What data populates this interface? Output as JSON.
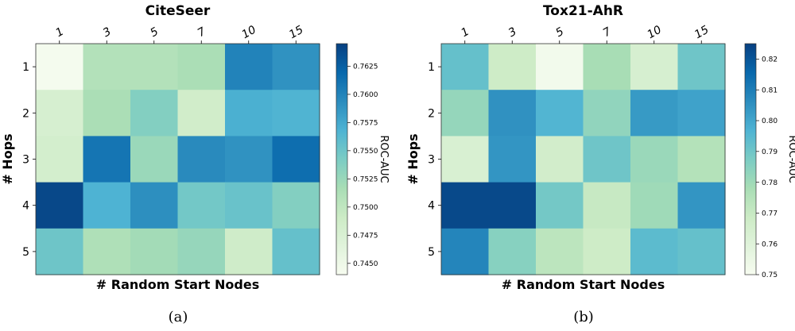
{
  "chart_data": [
    {
      "type": "heatmap",
      "panel_label": "(a)",
      "title": "CiteSeer",
      "xlabel": "# Random Start Nodes",
      "ylabel": "# Hops",
      "x_categories": [
        "1",
        "3",
        "5",
        "7",
        "10",
        "15"
      ],
      "y_categories": [
        "1",
        "2",
        "3",
        "4",
        "5"
      ],
      "values": [
        [
          0.7443,
          0.7509,
          0.7509,
          0.7515,
          0.76,
          0.759
        ],
        [
          0.7478,
          0.7515,
          0.7538,
          0.7485,
          0.757,
          0.7567
        ],
        [
          0.7482,
          0.761,
          0.7525,
          0.7595,
          0.759,
          0.7615
        ],
        [
          0.764,
          0.7568,
          0.7592,
          0.7547,
          0.7553,
          0.7538
        ],
        [
          0.755,
          0.7512,
          0.752,
          0.7527,
          0.7487,
          0.7555
        ]
      ],
      "colorbar": {
        "label": "ROC-AUC",
        "range": [
          0.744,
          0.7645
        ],
        "ticks": [
          "0.7450",
          "0.7475",
          "0.7500",
          "0.7525",
          "0.7550",
          "0.7575",
          "0.7600",
          "0.7625"
        ],
        "tick_values": [
          0.745,
          0.7475,
          0.75,
          0.7525,
          0.755,
          0.7575,
          0.76,
          0.7625
        ]
      },
      "colormap": "GnBu"
    },
    {
      "type": "heatmap",
      "panel_label": "(b)",
      "title": "Tox21-AhR",
      "xlabel": "# Random Start Nodes",
      "ylabel": "# Hops",
      "x_categories": [
        "1",
        "3",
        "5",
        "7",
        "10",
        "15"
      ],
      "y_categories": [
        "1",
        "2",
        "3",
        "4",
        "5"
      ],
      "values": [
        [
          0.792,
          0.768,
          0.752,
          0.778,
          0.764,
          0.79
        ],
        [
          0.782,
          0.805,
          0.796,
          0.783,
          0.803,
          0.801
        ],
        [
          0.763,
          0.804,
          0.766,
          0.79,
          0.781,
          0.775
        ],
        [
          0.823,
          0.823,
          0.789,
          0.77,
          0.78,
          0.804
        ],
        [
          0.808,
          0.785,
          0.773,
          0.768,
          0.794,
          0.792
        ]
      ],
      "colorbar": {
        "label": "ROC-AUC",
        "range": [
          0.75,
          0.825
        ],
        "ticks": [
          "0.75",
          "0.76",
          "0.77",
          "0.78",
          "0.79",
          "0.80",
          "0.81",
          "0.82"
        ],
        "tick_values": [
          0.75,
          0.76,
          0.77,
          0.78,
          0.79,
          0.8,
          0.81,
          0.82
        ]
      },
      "colormap": "GnBu"
    }
  ]
}
